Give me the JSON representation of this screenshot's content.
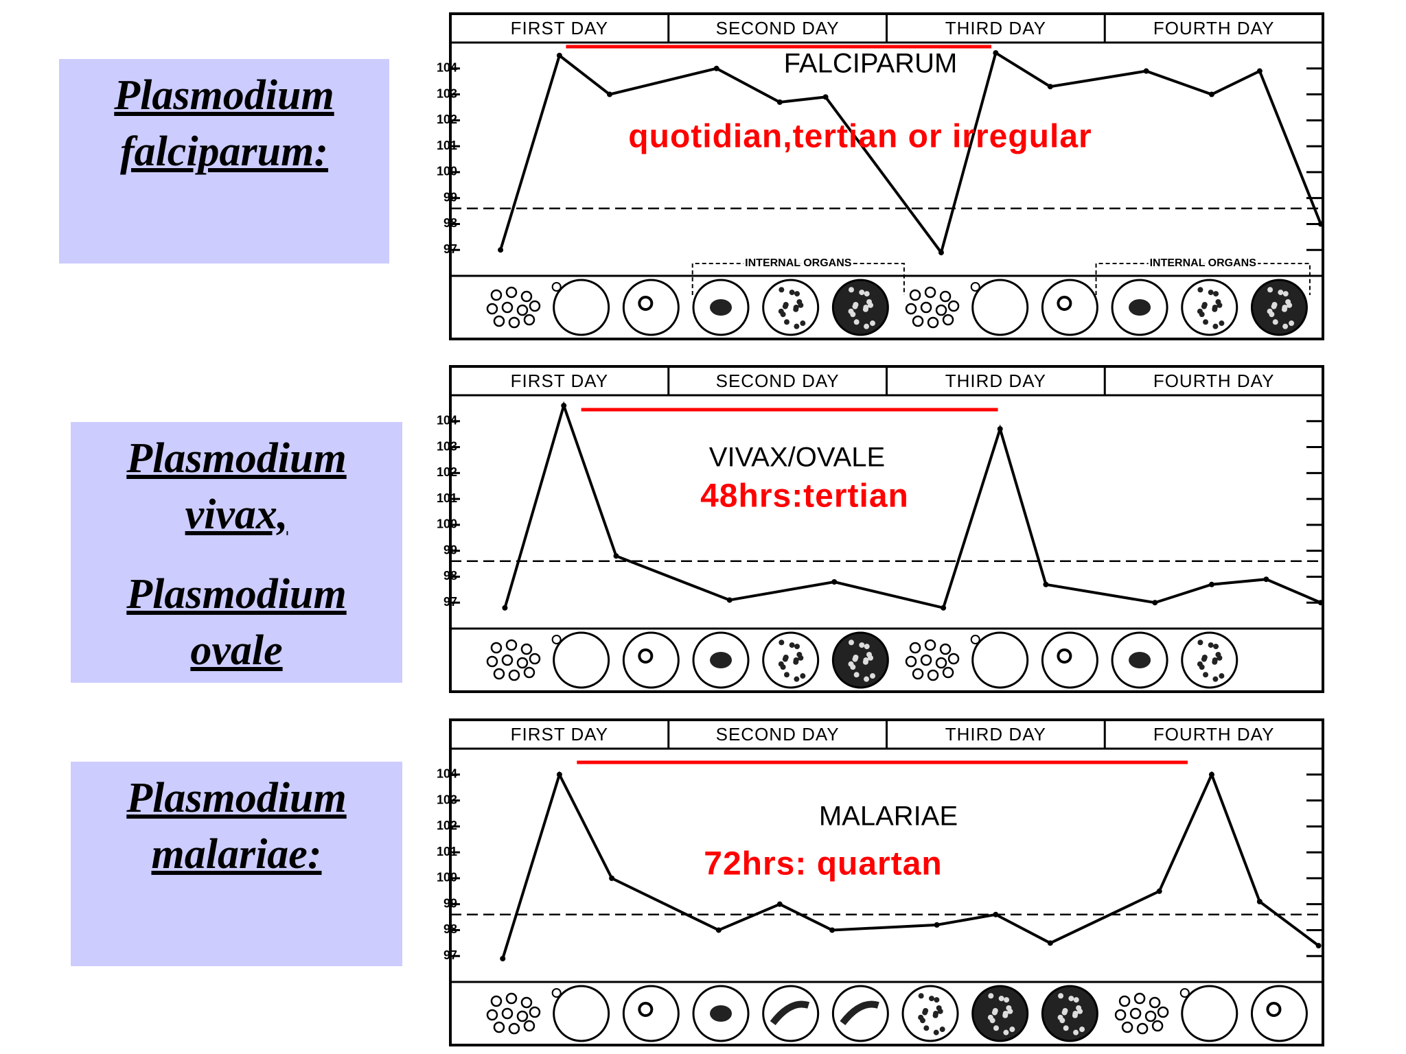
{
  "side_labels": [
    {
      "lines": [
        "Plasmodium",
        "falciparum:"
      ]
    },
    {
      "lines": [
        "Plasmodium",
        "vivax,",
        "Plasmodium",
        "ovale"
      ]
    },
    {
      "lines": [
        "Plasmodium",
        "malariae:"
      ]
    }
  ],
  "chart_data": [
    {
      "type": "line",
      "title": "FALCIPARUM",
      "subtitle": "quotidian,tertian or irregular",
      "days": [
        "FIRST DAY",
        "SECOND DAY",
        "THIRD DAY",
        "FOURTH DAY"
      ],
      "x": [
        0.23,
        0.5,
        0.73,
        1.22,
        1.51,
        1.72,
        2.25,
        2.5,
        2.75,
        3.19,
        3.49,
        3.71,
        3.99
      ],
      "values": [
        97,
        104.5,
        103,
        104,
        102.7,
        102.9,
        96.9,
        104.6,
        103.3,
        103.9,
        103,
        103.9,
        98
      ],
      "color": "#000000",
      "xlim": [
        0,
        4
      ],
      "ylim": [
        96,
        105
      ],
      "yticks": [
        97,
        98,
        99,
        100,
        101,
        102,
        103,
        104
      ],
      "reference_line": 98.6,
      "period": [
        0.53,
        2.48
      ],
      "period_color": "#ff0000",
      "annotations": [
        {
          "text": "INTERNAL ORGANS",
          "x": [
            1.11,
            2.08
          ]
        },
        {
          "text": "INTERNAL ORGANS",
          "x": [
            2.96,
            3.94
          ]
        }
      ]
    },
    {
      "type": "line",
      "title": "VIVAX/OVALE",
      "subtitle": "48hrs:tertian",
      "days": [
        "FIRST DAY",
        "SECOND DAY",
        "THIRD DAY",
        "FOURTH DAY"
      ],
      "x": [
        0.25,
        0.52,
        0.76,
        1.28,
        1.76,
        2.26,
        2.52,
        2.73,
        3.23,
        3.49,
        3.74,
        3.99
      ],
      "values": [
        96.8,
        104.6,
        98.8,
        97.1,
        97.8,
        96.8,
        103.7,
        97.7,
        97,
        97.7,
        97.9,
        97
      ],
      "color": "#000000",
      "xlim": [
        0,
        4
      ],
      "ylim": [
        96,
        105
      ],
      "yticks": [
        97,
        98,
        99,
        100,
        101,
        102,
        103,
        104
      ],
      "reference_line": 98.6,
      "period": [
        0.6,
        2.51
      ],
      "period_color": "#ff0000"
    },
    {
      "type": "line",
      "title": "MALARIAE",
      "subtitle": "72hrs: quartan",
      "days": [
        "FIRST DAY",
        "SECOND DAY",
        "THIRD DAY",
        "FOURTH DAY"
      ],
      "x": [
        0.24,
        0.5,
        0.74,
        1.23,
        1.51,
        1.75,
        2.23,
        2.5,
        2.75,
        3.25,
        3.49,
        3.71,
        3.98
      ],
      "values": [
        96.9,
        104,
        100,
        98,
        99,
        98,
        98.2,
        98.6,
        97.5,
        99.5,
        104,
        99.1,
        97.4
      ],
      "color": "#000000",
      "xlim": [
        0,
        4
      ],
      "ylim": [
        96,
        105
      ],
      "yticks": [
        97,
        98,
        99,
        100,
        101,
        102,
        103,
        104
      ],
      "reference_line": 98.6,
      "period": [
        0.58,
        3.38
      ],
      "period_color": "#ff0000"
    }
  ]
}
